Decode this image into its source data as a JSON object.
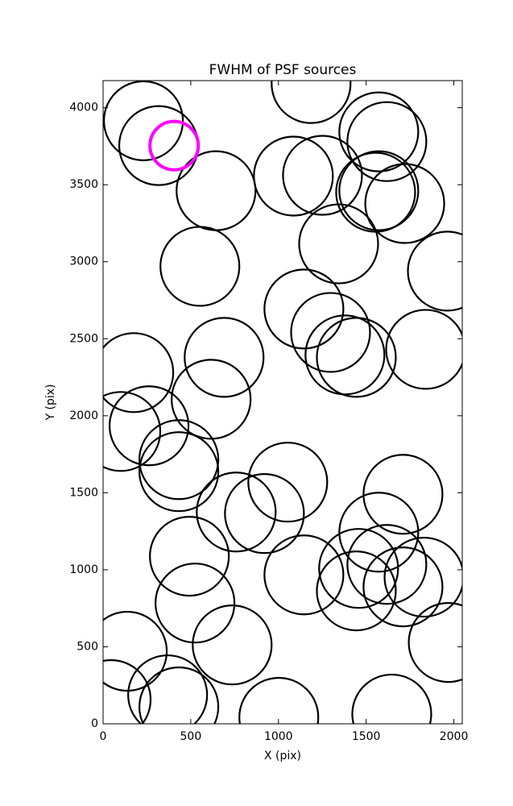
{
  "chart_data": {
    "type": "scatter",
    "title": "FWHM of PSF sources",
    "x_label": "X (pix)",
    "y_label": "Y (pix)",
    "xlim": [
      0,
      2048
    ],
    "ylim": [
      0,
      4176
    ],
    "xticks": [
      0,
      500,
      1000,
      1500,
      2000
    ],
    "yticks": [
      0,
      500,
      1000,
      1500,
      2000,
      2500,
      3000,
      3500,
      4000
    ],
    "series": [
      {
        "color": "#000000",
        "x": [
          230,
          317,
          644,
          1186,
          1572,
          1618,
          1085,
          1251,
          1554,
          1572,
          1720,
          1343,
          552,
          1963,
          1145,
          1297,
          1379,
          1444,
          1839,
          690,
          616,
          175,
          101,
          262,
          432,
          432,
          759,
          920,
          1053,
          492,
          524,
          736,
          1145,
          1710,
          1572,
          1618,
          1457,
          1444,
          1710,
          1830,
          1968,
          138,
          46,
          368,
          432,
          1002,
          1646
        ],
        "y": [
          3915,
          3754,
          3461,
          4157,
          3843,
          3780,
          3556,
          3561,
          3451,
          3461,
          3378,
          3116,
          2970,
          2939,
          2693,
          2541,
          2395,
          2379,
          2431,
          2379,
          2107,
          2280,
          1898,
          1935,
          1715,
          1637,
          1375,
          1365,
          1569,
          1088,
          784,
          512,
          967,
          1490,
          1244,
          1035,
          1009,
          863,
          889,
          952,
          528,
          471,
          157,
          188,
          110,
          42,
          63
        ]
      },
      {
        "color": "#ff00ff",
        "x": [
          405
        ],
        "y": [
          3754
        ]
      }
    ]
  }
}
